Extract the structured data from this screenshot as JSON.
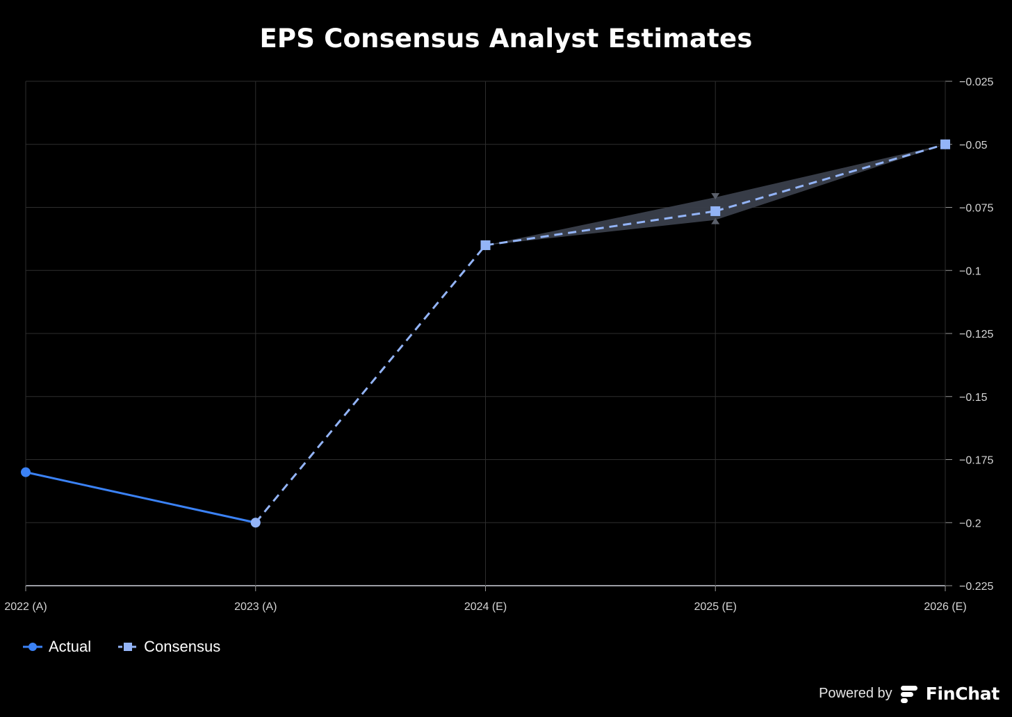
{
  "chart_data": {
    "type": "line",
    "title": "EPS Consensus Analyst Estimates",
    "categories": [
      "2022 (A)",
      "2023 (A)",
      "2024 (E)",
      "2025 (E)",
      "2026 (E)"
    ],
    "y_ticks": [
      "-0.025",
      "-0.05",
      "-0.075",
      "-0.1",
      "-0.125",
      "-0.15",
      "-0.175",
      "-0.2",
      "-0.225"
    ],
    "ylim": [
      -0.225,
      -0.025
    ],
    "y_axis_position": "right",
    "grid": true,
    "legend_position": "bottom-left",
    "series": [
      {
        "name": "Actual",
        "style": "solid",
        "marker": "circle",
        "color": "#3b82f6",
        "values": [
          -0.18,
          -0.2,
          null,
          null,
          null
        ]
      },
      {
        "name": "Consensus",
        "style": "dashed",
        "marker": "square",
        "color": "#93b4f7",
        "values": [
          null,
          -0.2,
          -0.09,
          -0.0765,
          -0.05
        ]
      }
    ],
    "estimate_range": {
      "color": "#3a3f4b",
      "categories": [
        "2024 (E)",
        "2025 (E)",
        "2026 (E)"
      ],
      "high": [
        -0.09,
        -0.071,
        -0.05
      ],
      "low": [
        -0.09,
        -0.08,
        -0.05
      ]
    }
  },
  "legend": {
    "actual_label": "Actual",
    "consensus_label": "Consensus"
  },
  "branding": {
    "powered_by": "Powered by",
    "name": "FinChat"
  }
}
